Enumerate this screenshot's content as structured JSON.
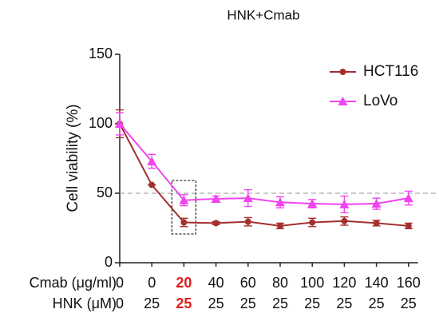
{
  "chart_data": {
    "type": "line",
    "title": "HNK+Cmab",
    "y_label": "Cell viability (%)",
    "ylim": [
      0,
      150
    ],
    "yticks": [
      0,
      50,
      100,
      150
    ],
    "x_label_rows": [
      {
        "name": "Cmab (μg/ml)",
        "labels": [
          "0",
          "0",
          "20",
          "40",
          "60",
          "80",
          "100",
          "120",
          "140",
          "160"
        ]
      },
      {
        "name": "HNK (μM)",
        "labels": [
          "0",
          "25",
          "25",
          "25",
          "25",
          "25",
          "25",
          "25",
          "25",
          "25"
        ]
      }
    ],
    "highlight_index": 2,
    "highlight_color": "#e0201c",
    "reference_line": 50,
    "legend_position": "upper right",
    "series": [
      {
        "name": "HCT116",
        "color": "#a3302f",
        "marker": "circle",
        "values": [
          100,
          56,
          29,
          28.5,
          29.5,
          26.5,
          29,
          30,
          28.5,
          26.5
        ],
        "errors": [
          10,
          0,
          3,
          1,
          3,
          2,
          3,
          3,
          2,
          2
        ]
      },
      {
        "name": "LoVo",
        "color": "#f044f0",
        "marker": "triangle",
        "values": [
          100,
          73,
          45,
          46,
          46.5,
          43.5,
          42.5,
          42,
          42.5,
          46.5
        ],
        "errors": [
          8,
          5,
          4,
          2,
          6,
          4,
          3,
          6,
          4,
          5
        ]
      }
    ]
  }
}
